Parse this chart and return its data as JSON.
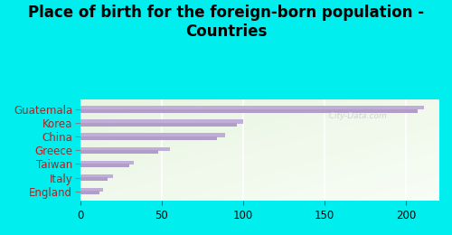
{
  "title": "Place of birth for the foreign-born population -\nCountries",
  "categories": [
    "Guatemala",
    "Korea",
    "China",
    "Greece",
    "Taiwan",
    "Italy",
    "England"
  ],
  "values1": [
    211,
    100,
    89,
    55,
    33,
    20,
    14
  ],
  "values2": [
    207,
    96,
    84,
    48,
    30,
    17,
    12
  ],
  "bar_color1": "#c0aed8",
  "bar_color2": "#b09ec8",
  "bg_color": "#00eeee",
  "chart_bg_color": "#e8f5e2",
  "chart_bg_color2": "#f8fdf5",
  "label_color": "#aa2222",
  "tick_color": "#555555",
  "xlim": [
    0,
    220
  ],
  "xticks": [
    0,
    50,
    100,
    150,
    200
  ],
  "title_fontsize": 12,
  "tick_fontsize": 8.5,
  "label_fontsize": 8.5,
  "watermark": "  City-Data.com"
}
